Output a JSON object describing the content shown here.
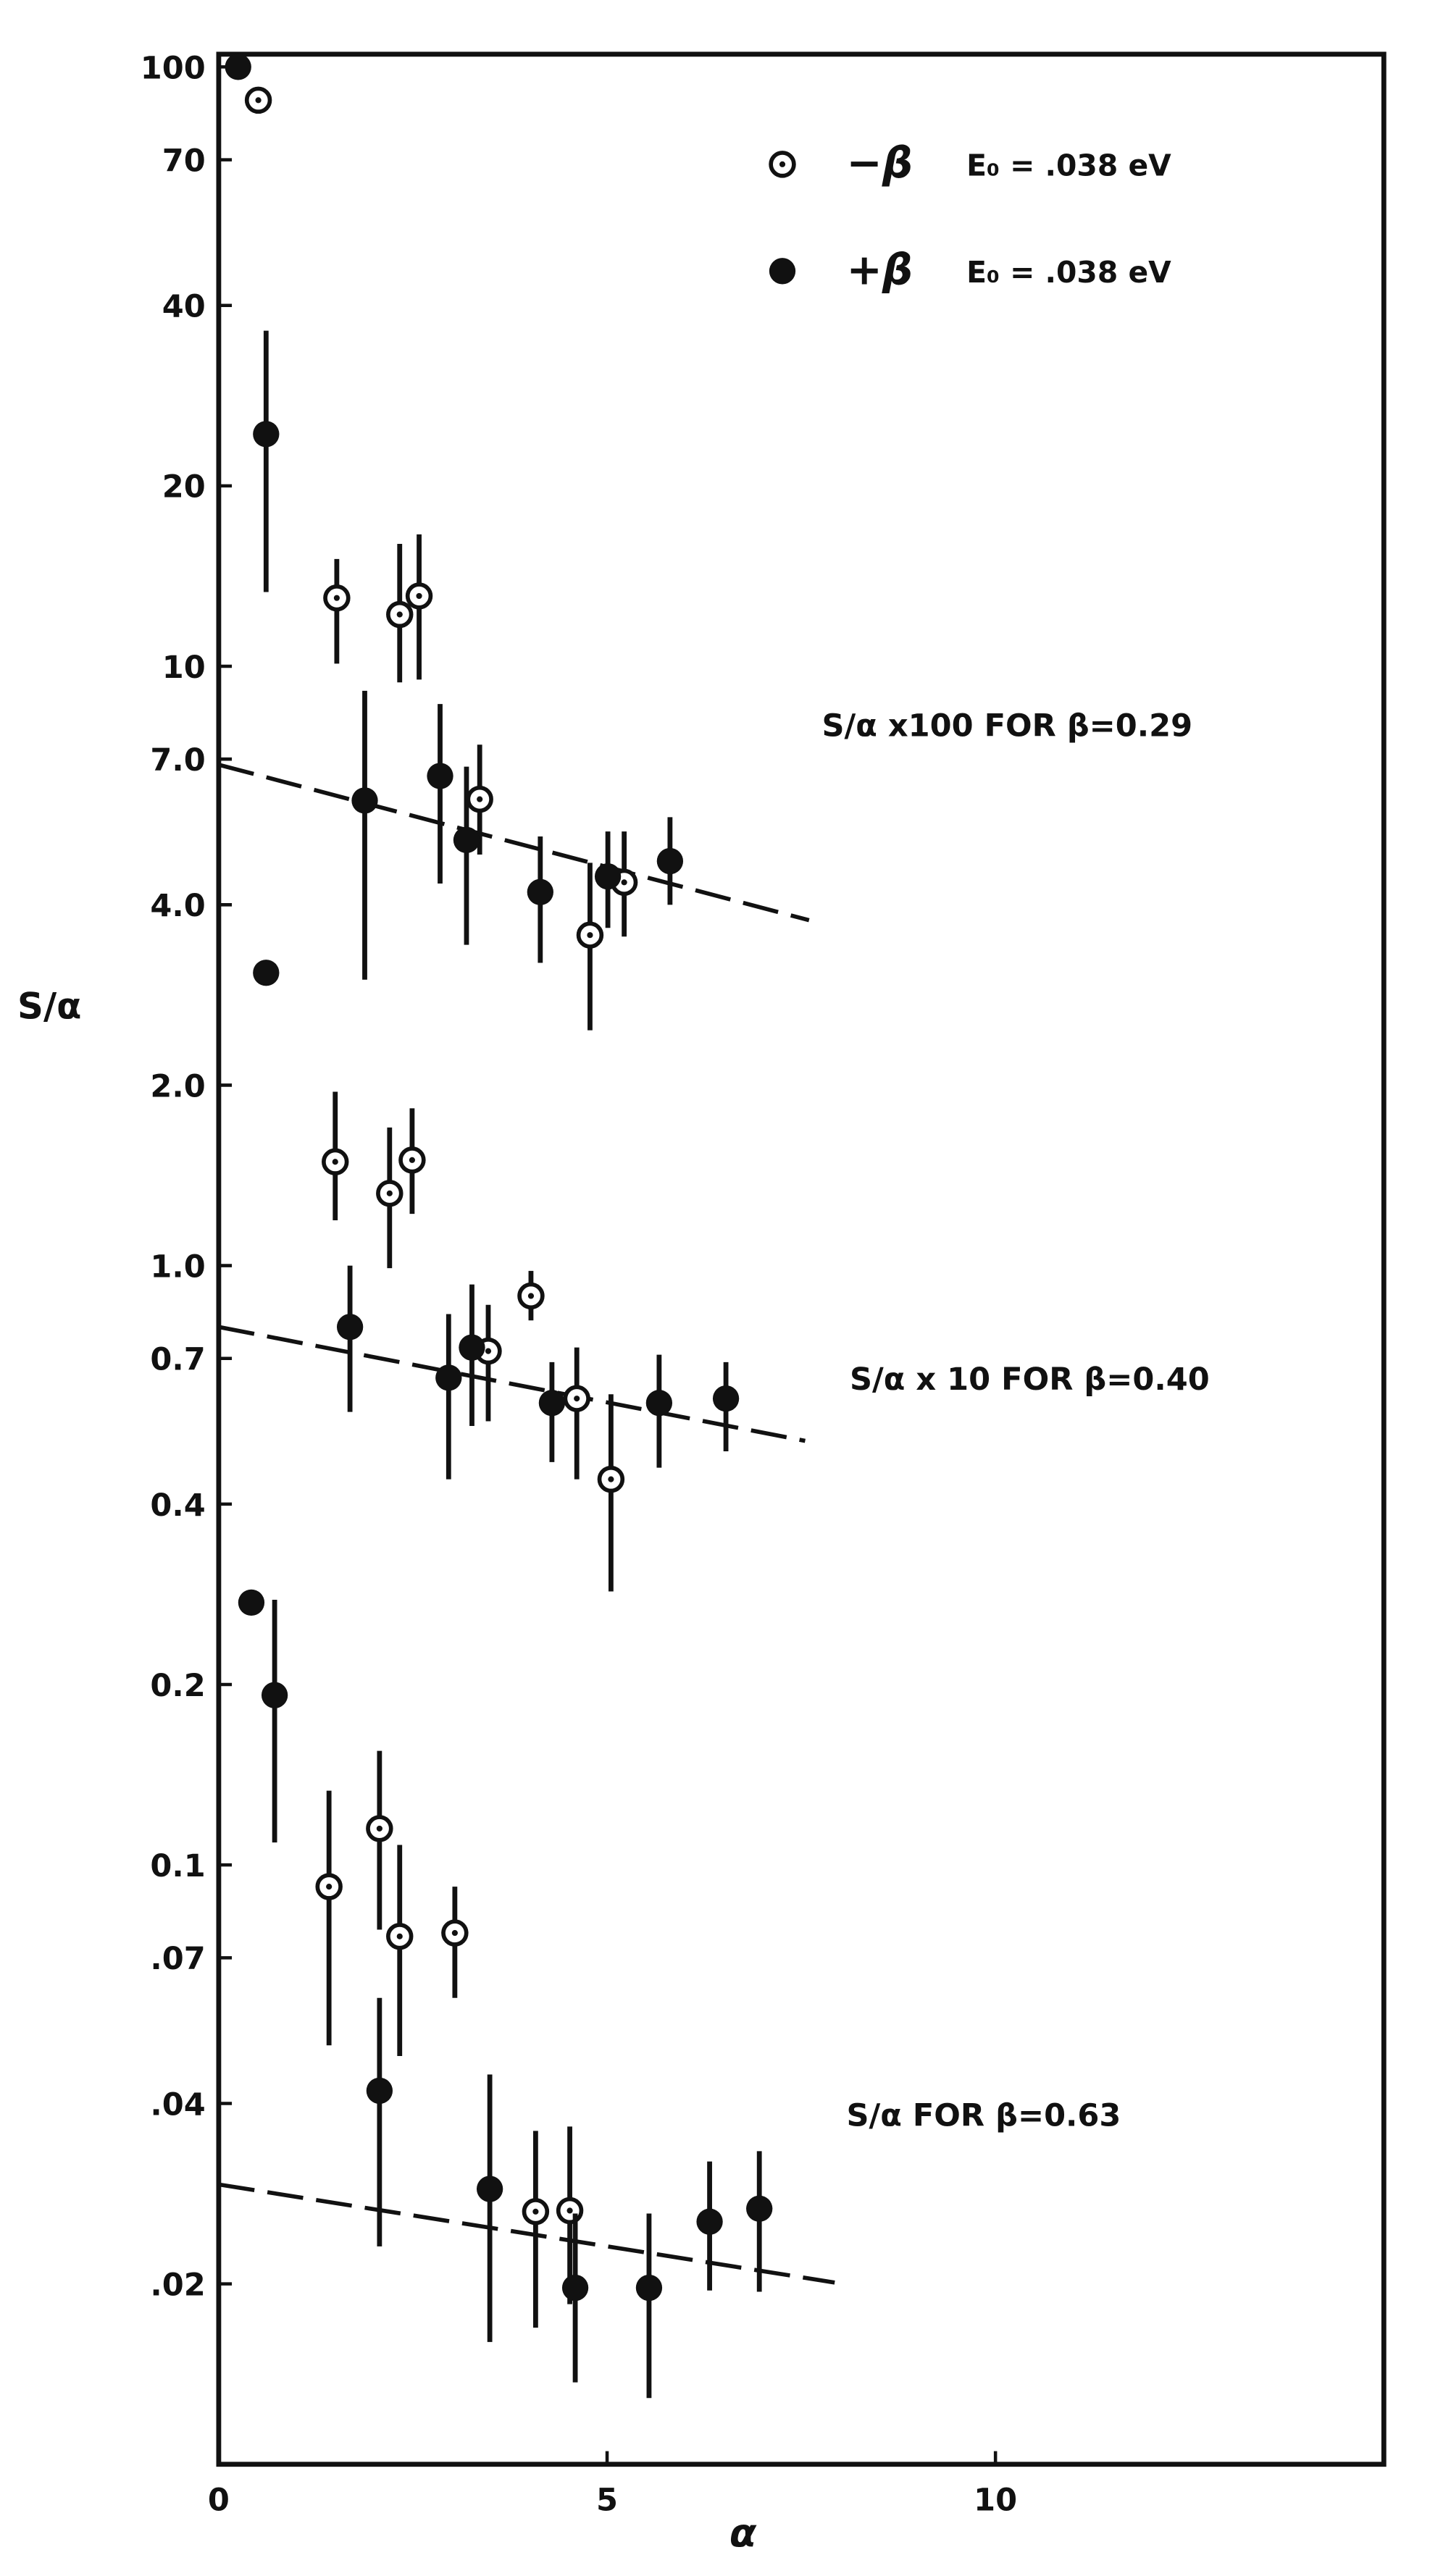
{
  "chart_data": {
    "type": "scatter",
    "xlabel": "α",
    "ylabel": "S/α",
    "xlim": [
      0,
      15
    ],
    "ylim": [
      0.01,
      105
    ],
    "yscale": "log",
    "xticks": [
      0,
      5,
      10
    ],
    "yticks": [
      100,
      70,
      40,
      20,
      10,
      {
        "value": 7,
        "label": "7.0"
      },
      {
        "value": 4,
        "label": "4.0"
      },
      {
        "value": 2,
        "label": "2.0"
      },
      {
        "value": 1,
        "label": "1.0"
      },
      0.7,
      0.4,
      0.2,
      0.1,
      {
        "value": 0.07,
        "label": ".07"
      },
      {
        "value": 0.04,
        "label": ".04"
      },
      {
        "value": 0.02,
        "label": ".02"
      }
    ],
    "series": [
      {
        "name": "−β",
        "legend_note": "E₀ = .038 eV",
        "marker": "open",
        "color": "#111111",
        "x": [
          0.51,
          1.52,
          2.33,
          2.58,
          3.36,
          4.78,
          5.22,
          1.5,
          2.2,
          2.49,
          3.47,
          4.02,
          4.61,
          5.05,
          1.42,
          2.07,
          2.33,
          3.04,
          4.08,
          4.52
        ],
        "values": [
          88,
          13.0,
          12.2,
          13.1,
          6.0,
          3.56,
          4.36,
          1.49,
          1.32,
          1.5,
          0.72,
          0.89,
          0.6,
          0.44,
          0.092,
          0.115,
          0.076,
          0.077,
          0.0264,
          0.0265
        ],
        "ylow": [
          null,
          10.1,
          9.4,
          9.5,
          4.85,
          2.47,
          3.54,
          1.19,
          0.99,
          1.22,
          0.55,
          0.81,
          0.44,
          0.286,
          0.05,
          0.078,
          0.048,
          0.06,
          0.0169,
          0.0185
        ],
        "yhigh": [
          null,
          15.1,
          16.0,
          16.6,
          7.4,
          4.7,
          5.3,
          1.95,
          1.7,
          1.83,
          0.86,
          0.98,
          0.73,
          0.61,
          0.133,
          0.155,
          0.108,
          0.092,
          0.036,
          0.0366
        ]
      },
      {
        "name": "+β",
        "legend_note": "E₀ = .038 eV",
        "marker": "filled",
        "color": "#111111",
        "x": [
          0.25,
          0.61,
          0.61,
          1.88,
          2.85,
          3.19,
          4.14,
          5.01,
          5.81,
          1.69,
          2.96,
          3.26,
          4.29,
          5.67,
          6.53,
          0.42,
          0.72,
          2.07,
          3.49,
          4.59,
          5.54,
          6.32,
          6.96
        ],
        "values": [
          100,
          24.4,
          3.08,
          5.97,
          6.56,
          5.13,
          4.2,
          4.46,
          4.73,
          0.79,
          0.65,
          0.73,
          0.59,
          0.59,
          0.6,
          0.274,
          0.192,
          0.042,
          0.0288,
          0.0197,
          0.0197,
          0.0254,
          0.0267
        ],
        "ylow": [
          null,
          13.3,
          null,
          3.0,
          4.34,
          3.43,
          3.2,
          3.66,
          4.0,
          0.57,
          0.44,
          0.54,
          0.47,
          0.46,
          0.49,
          null,
          0.109,
          0.0231,
          0.016,
          0.0137,
          0.0129,
          0.0195,
          0.0194
        ],
        "yhigh": [
          null,
          36.3,
          null,
          9.1,
          8.65,
          6.8,
          5.2,
          5.3,
          5.6,
          1.0,
          0.83,
          0.93,
          0.69,
          0.71,
          0.69,
          null,
          0.277,
          0.06,
          0.0447,
          0.0262,
          0.0262,
          0.032,
          0.0333
        ]
      }
    ],
    "fit_lines": [
      {
        "x": [
          0,
          7.6
        ],
        "values": [
          6.85,
          3.77
        ]
      },
      {
        "x": [
          0,
          7.55
        ],
        "values": [
          0.79,
          0.51
        ]
      },
      {
        "x": [
          0,
          7.93
        ],
        "values": [
          0.0293,
          0.0201
        ]
      }
    ],
    "annotations": [
      "S/α x100 FOR β=0.29",
      "S/α x 10 FOR β=0.40",
      "S/α FOR β=0.63"
    ]
  }
}
